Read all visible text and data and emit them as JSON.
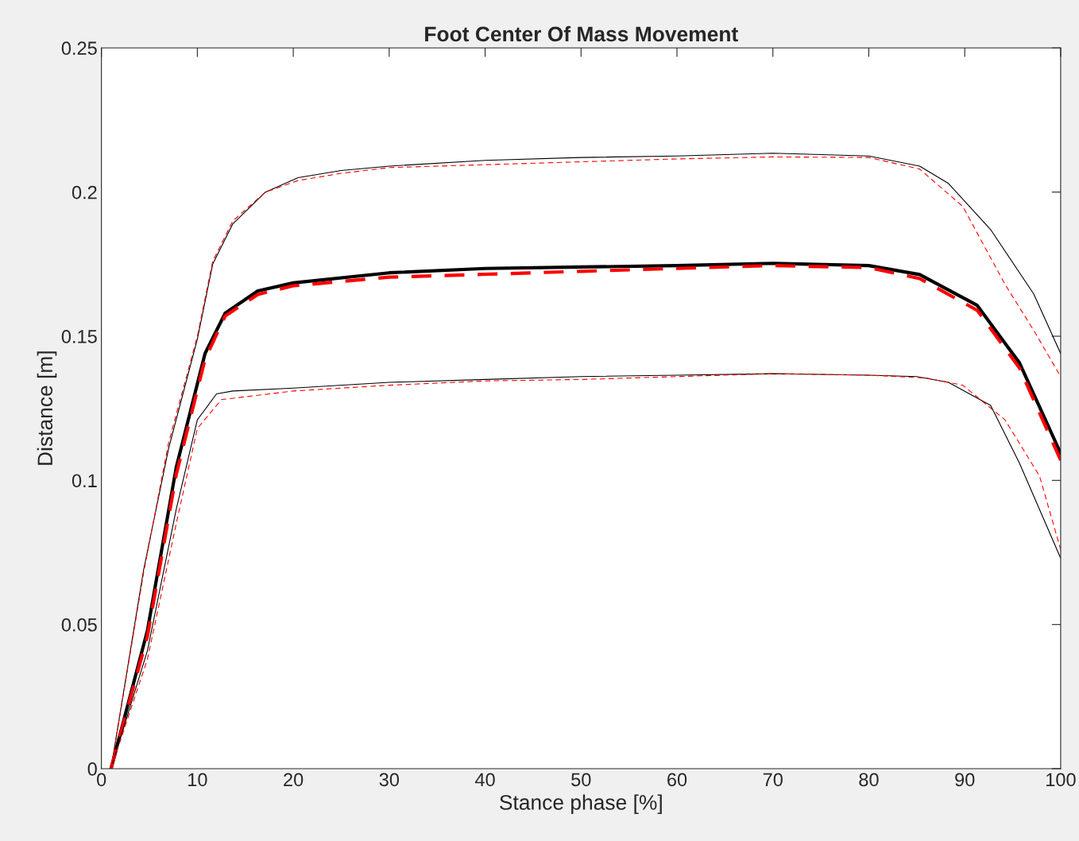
{
  "chart_data": {
    "type": "line",
    "title": "Foot Center Of Mass Movement",
    "xlabel": "Stance phase [%]",
    "ylabel": "Distance [m]",
    "xlim": [
      0,
      100
    ],
    "xticks": [
      0,
      10,
      20,
      30,
      40,
      50,
      60,
      70,
      80,
      90,
      100
    ],
    "ylim": [
      0,
      0.25
    ],
    "yticks": [
      0,
      0.05,
      0.1,
      0.15,
      0.2,
      0.25
    ],
    "grid": false,
    "legend": false,
    "marker": "none",
    "series": [
      {
        "color": "#000000",
        "line_style": "solid",
        "x": [
          1,
          4.4,
          7,
          10,
          11.6,
          13.7,
          17.1,
          20.5,
          25,
          30,
          40,
          50,
          60,
          70,
          80,
          85.3,
          88.3,
          92.7,
          97.2,
          100
        ],
        "values": [
          0,
          0.069,
          0.111,
          0.149,
          0.175,
          0.189,
          0.2,
          0.205,
          0.2075,
          0.209,
          0.211,
          0.212,
          0.2125,
          0.2135,
          0.2125,
          0.209,
          0.203,
          0.187,
          0.1646,
          0.144
        ]
      },
      {
        "color": "#ff0000",
        "line_style": "dashed",
        "x": [
          1,
          4.4,
          7,
          10,
          11.6,
          13.7,
          17.1,
          20.5,
          25,
          30,
          40,
          50,
          60,
          70,
          80,
          85.3,
          89.8,
          94.2,
          97.2,
          100
        ],
        "values": [
          0,
          0.068,
          0.113,
          0.15,
          0.176,
          0.19,
          0.2,
          0.204,
          0.2065,
          0.2085,
          0.2095,
          0.2105,
          0.2115,
          0.2122,
          0.212,
          0.208,
          0.195,
          0.168,
          0.152,
          0.136
        ]
      },
      {
        "color": "#000000",
        "line_style": "solid",
        "x": [
          1,
          4.8,
          7.8,
          10.8,
          12.9,
          16.3,
          20,
          30,
          40,
          50,
          60,
          70,
          80,
          85.3,
          91.3,
          95.7,
          100
        ],
        "values": [
          0,
          0.048,
          0.1045,
          0.144,
          0.158,
          0.1657,
          0.1685,
          0.172,
          0.1735,
          0.174,
          0.1745,
          0.1753,
          0.1745,
          0.1714,
          0.1607,
          0.1408,
          0.1094
        ]
      },
      {
        "color": "#ff0000",
        "line_style": "dashed",
        "x": [
          1,
          4.8,
          7.8,
          10.8,
          12.9,
          16.3,
          20,
          30,
          40,
          50,
          60,
          70,
          80,
          85.3,
          91.3,
          95.7,
          100
        ],
        "values": [
          0,
          0.046,
          0.102,
          0.142,
          0.157,
          0.1645,
          0.1675,
          0.1705,
          0.1715,
          0.1725,
          0.1735,
          0.1745,
          0.1738,
          0.17,
          0.159,
          0.139,
          0.107
        ]
      },
      {
        "color": "#000000",
        "line_style": "solid",
        "x": [
          1,
          4.8,
          7.8,
          10,
          12,
          13.7,
          20,
          30,
          40,
          50,
          60,
          70,
          80,
          85,
          88.3,
          92.7,
          95.7,
          100
        ],
        "values": [
          0,
          0.041,
          0.09,
          0.121,
          0.13,
          0.131,
          0.132,
          0.134,
          0.135,
          0.136,
          0.1365,
          0.137,
          0.1365,
          0.136,
          0.134,
          0.126,
          0.106,
          0.073
        ]
      },
      {
        "color": "#ff0000",
        "line_style": "dashed",
        "x": [
          1,
          4.8,
          7.8,
          10,
          12.5,
          20,
          30,
          40,
          50,
          60,
          70,
          80,
          86,
          89.8,
          94.2,
          97.8,
          100
        ],
        "values": [
          0,
          0.038,
          0.085,
          0.118,
          0.128,
          0.131,
          0.133,
          0.1345,
          0.135,
          0.136,
          0.137,
          0.1365,
          0.1355,
          0.133,
          0.121,
          0.1015,
          0.076
        ]
      }
    ]
  }
}
